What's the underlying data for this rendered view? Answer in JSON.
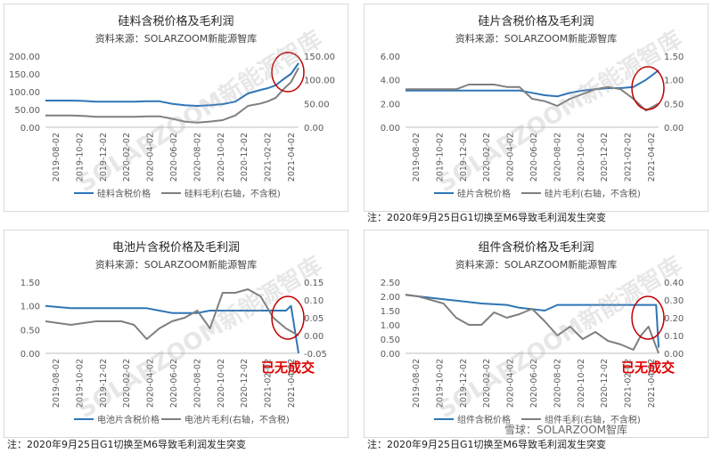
{
  "chart_data": [
    {
      "type": "line",
      "title": "硅料含税价格及毛利润",
      "subtitle": "资料来源：SOLARZOOM新能源智库",
      "x_tick_labels": [
        "2019-08-02",
        "2019-10-02",
        "2019-12-02",
        "2020-02-02",
        "2020-04-02",
        "2020-06-02",
        "2020-08-02",
        "2020-10-02",
        "2020-12-02",
        "2021-02-02",
        "2021-04-02"
      ],
      "y_left_ticks": [
        "0.00",
        "50.00",
        "100.00",
        "150.00",
        "200.00"
      ],
      "y_right_ticks": [
        "0.00",
        "50.00",
        "100.00",
        "150.00"
      ],
      "y_left_range": [
        0,
        200
      ],
      "y_right_range": [
        0,
        150
      ],
      "legend": [
        "硅料含税价格",
        "硅料毛利(右轴，不含税)"
      ],
      "series": [
        {
          "name": "硅料含税价格",
          "axis": "left",
          "color": "#2e75b6",
          "x": [
            0,
            0.05,
            0.1,
            0.15,
            0.2,
            0.25,
            0.3,
            0.35,
            0.4,
            0.45,
            0.5,
            0.55,
            0.6,
            0.65,
            0.7,
            0.75,
            0.8,
            0.85,
            0.88,
            0.91,
            0.94,
            0.97,
            1.0
          ],
          "y": [
            75,
            75,
            75,
            74,
            72,
            72,
            72,
            72,
            73,
            73,
            66,
            62,
            60,
            62,
            65,
            72,
            95,
            105,
            110,
            118,
            135,
            150,
            180
          ]
        },
        {
          "name": "硅料毛利(右轴，不含税)",
          "axis": "right",
          "color": "#7f7f7f",
          "x": [
            0,
            0.05,
            0.1,
            0.15,
            0.2,
            0.25,
            0.3,
            0.35,
            0.4,
            0.45,
            0.5,
            0.55,
            0.6,
            0.65,
            0.7,
            0.75,
            0.8,
            0.85,
            0.88,
            0.91,
            0.94,
            0.97,
            1.0
          ],
          "y": [
            25,
            25,
            25,
            24,
            22,
            22,
            22,
            22,
            23,
            23,
            18,
            12,
            10,
            12,
            15,
            25,
            45,
            50,
            55,
            62,
            80,
            95,
            125
          ]
        }
      ]
    },
    {
      "type": "line",
      "title": "硅片含税价格及毛利润",
      "subtitle": "资料来源：SOLARZOOM新能源智库",
      "x_tick_labels": [
        "2019-08-02",
        "2019-10-02",
        "2019-12-02",
        "2020-02-02",
        "2020-04-02",
        "2020-06-02",
        "2020-08-02",
        "2020-10-02",
        "2020-12-02",
        "2021-02-02",
        "2021-04-02"
      ],
      "y_left_ticks": [
        "0.00",
        "2.00",
        "4.00",
        "6.00"
      ],
      "y_right_ticks": [
        "0.00",
        "0.50",
        "1.00",
        "1.50"
      ],
      "y_left_range": [
        0,
        6
      ],
      "y_right_range": [
        0,
        1.5
      ],
      "legend": [
        "硅片含税价格",
        "硅片毛利(右轴，不含税)"
      ],
      "series": [
        {
          "name": "硅片含税价格",
          "axis": "left",
          "color": "#2e75b6",
          "x": [
            0,
            0.1,
            0.2,
            0.3,
            0.35,
            0.4,
            0.45,
            0.5,
            0.55,
            0.6,
            0.65,
            0.7,
            0.75,
            0.8,
            0.85,
            0.9,
            0.95,
            1.0
          ],
          "y": [
            3.1,
            3.1,
            3.1,
            3.1,
            3.1,
            3.1,
            3.1,
            2.9,
            2.7,
            2.6,
            2.9,
            3.1,
            3.2,
            3.3,
            3.3,
            3.4,
            4.0,
            4.8
          ]
        },
        {
          "name": "硅片毛利(右轴，不含税)",
          "axis": "right",
          "color": "#7f7f7f",
          "x": [
            0,
            0.1,
            0.2,
            0.25,
            0.3,
            0.35,
            0.4,
            0.45,
            0.5,
            0.55,
            0.6,
            0.65,
            0.7,
            0.75,
            0.8,
            0.85,
            0.9,
            0.95,
            1.0
          ],
          "y": [
            0.8,
            0.8,
            0.8,
            0.9,
            0.9,
            0.9,
            0.85,
            0.85,
            0.6,
            0.55,
            0.45,
            0.6,
            0.7,
            0.8,
            0.85,
            0.8,
            0.6,
            0.35,
            0.5
          ]
        }
      ],
      "note": "注：2020年9月25日G1切换至M6导致毛利润发生突变"
    },
    {
      "type": "line",
      "title": "电池片含税价格及毛利润",
      "subtitle": "资料来源：SOLARZOOM新能源智库",
      "x_tick_labels": [
        "2019-08-02",
        "2019-10-02",
        "2019-12-02",
        "2020-02-02",
        "2020-04-02",
        "2020-06-02",
        "2020-08-02",
        "2020-10-02",
        "2020-12-02",
        "2021-02-02",
        "2021-04-02"
      ],
      "y_left_ticks": [
        "0.00",
        "0.50",
        "1.00",
        "1.50"
      ],
      "y_right_ticks": [
        "-0.05",
        "0.00",
        "0.05",
        "0.10",
        "0.15"
      ],
      "y_left_range": [
        0,
        1.5
      ],
      "y_right_range": [
        -0.05,
        0.15
      ],
      "legend": [
        "电池片含税价格",
        "电池片毛利(右轴，不含税)"
      ],
      "series": [
        {
          "name": "电池片含税价格",
          "axis": "left",
          "color": "#2e75b6",
          "x": [
            0,
            0.1,
            0.2,
            0.3,
            0.35,
            0.4,
            0.45,
            0.5,
            0.55,
            0.6,
            0.65,
            0.7,
            0.75,
            0.8,
            0.85,
            0.9,
            0.95,
            0.97,
            1.0
          ],
          "y": [
            1.0,
            0.95,
            0.95,
            0.95,
            0.95,
            0.95,
            0.9,
            0.85,
            0.85,
            0.85,
            0.9,
            0.9,
            0.9,
            0.9,
            0.9,
            0.9,
            0.9,
            1.0,
            0.0
          ]
        },
        {
          "name": "电池片毛利(右轴，不含税)",
          "axis": "right",
          "color": "#7f7f7f",
          "x": [
            0,
            0.1,
            0.2,
            0.3,
            0.35,
            0.4,
            0.45,
            0.5,
            0.55,
            0.6,
            0.65,
            0.7,
            0.75,
            0.8,
            0.85,
            0.9,
            0.95,
            1.0
          ],
          "y": [
            0.04,
            0.03,
            0.04,
            0.04,
            0.03,
            -0.01,
            0.02,
            0.04,
            0.05,
            0.07,
            0.02,
            0.12,
            0.12,
            0.13,
            0.11,
            0.05,
            0.02,
            0.0
          ]
        }
      ],
      "stamp": "已无成交",
      "note": "注：2020年9月25日G1切换至M6导致毛利润发生突变"
    },
    {
      "type": "line",
      "title": "组件含税价格及毛利润",
      "subtitle": "资料来源：SOLARZOOM新能源智库",
      "x_tick_labels": [
        "2019-08-02",
        "2019-10-02",
        "2019-12-02",
        "2020-02-02",
        "2020-04-02",
        "2020-06-02",
        "2020-08-02",
        "2020-10-02",
        "2020-12-02",
        "2021-02-02",
        "2021-04-02"
      ],
      "y_left_ticks": [
        "0.00",
        "0.50",
        "1.00",
        "1.50",
        "2.00",
        "2.50"
      ],
      "y_right_ticks": [
        "0.00",
        "0.10",
        "0.20",
        "0.30",
        "0.40"
      ],
      "y_left_range": [
        0,
        2.5
      ],
      "y_right_range": [
        0,
        0.4
      ],
      "legend": [
        "组件含税价格",
        "组件毛利(右轴，不含税)"
      ],
      "series": [
        {
          "name": "组件含税价格",
          "axis": "left",
          "color": "#2e75b6",
          "x": [
            0,
            0.1,
            0.2,
            0.3,
            0.4,
            0.45,
            0.5,
            0.55,
            0.6,
            0.7,
            0.8,
            0.85,
            0.9,
            0.95,
            0.99,
            1.0
          ],
          "y": [
            2.05,
            1.95,
            1.85,
            1.75,
            1.7,
            1.6,
            1.55,
            1.5,
            1.7,
            1.7,
            1.7,
            1.7,
            1.7,
            1.7,
            1.7,
            0.2
          ]
        },
        {
          "name": "组件毛利(右轴，不含税)",
          "axis": "right",
          "color": "#7f7f7f",
          "x": [
            0,
            0.05,
            0.1,
            0.15,
            0.2,
            0.25,
            0.3,
            0.35,
            0.4,
            0.45,
            0.5,
            0.55,
            0.6,
            0.65,
            0.7,
            0.75,
            0.8,
            0.85,
            0.9,
            0.93,
            0.96,
            1.0
          ],
          "y": [
            0.33,
            0.32,
            0.3,
            0.28,
            0.2,
            0.16,
            0.16,
            0.23,
            0.2,
            0.22,
            0.25,
            0.18,
            0.1,
            0.15,
            0.08,
            0.12,
            0.07,
            0.05,
            0.02,
            0.1,
            0.15,
            0.0
          ]
        }
      ],
      "stamp": "已无成交",
      "note": "注：2020年9月25日G1切换至M6导致毛利润发生突变"
    }
  ],
  "footer_watermark": "雪球：SOLARZOOM智库",
  "chart_watermark": "SOLARZOOM新能源智库"
}
